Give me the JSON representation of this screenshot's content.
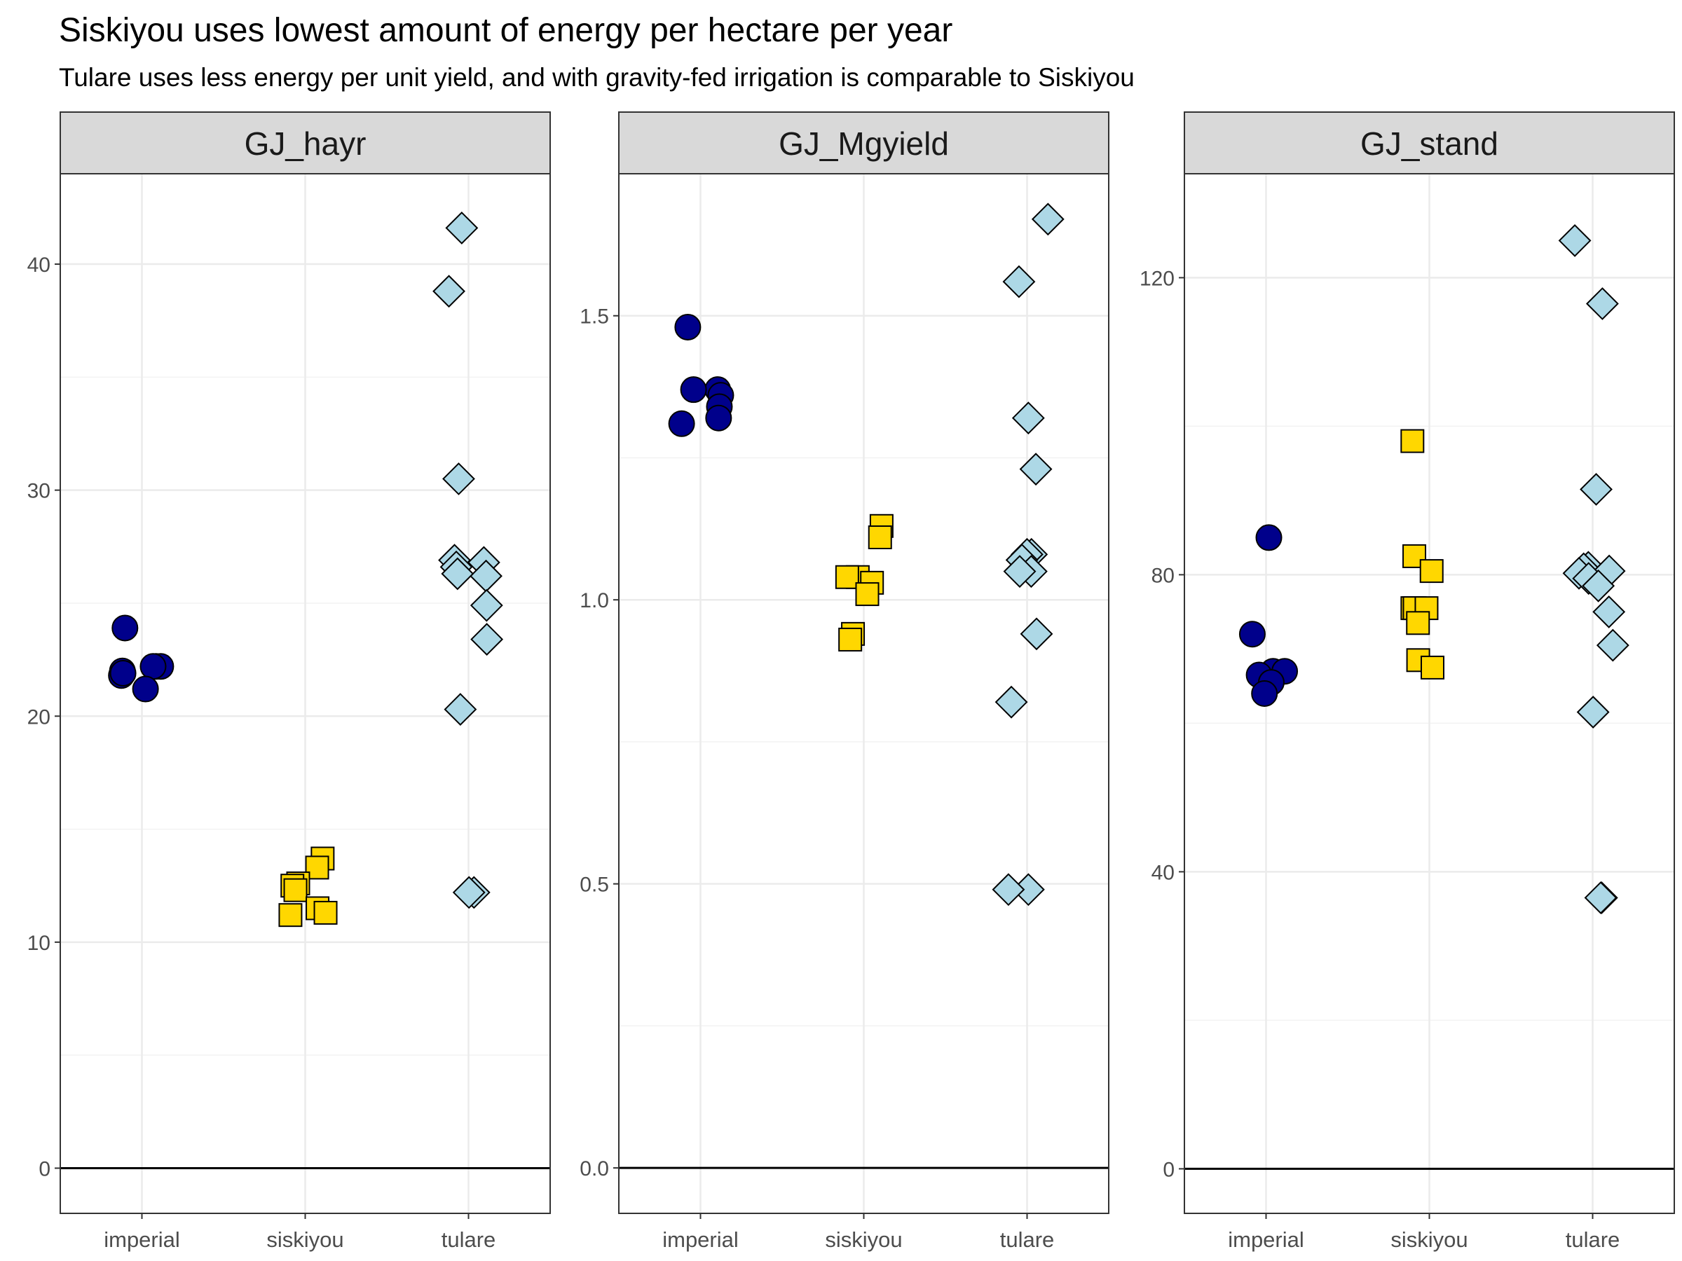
{
  "chart_data": {
    "type": "scatter",
    "title": "Siskiyou uses lowest amount of energy per hectare per year",
    "subtitle": "Tulare uses less energy per unit yield, and with gravity-fed irrigation is comparable to Siskiyou",
    "xlabel": "",
    "ylabel": "",
    "categories": [
      "imperial",
      "siskiyou",
      "tulare"
    ],
    "grid": true,
    "legend": "none",
    "colors": {
      "imperial": "#00008B",
      "siskiyou": "#FFD700",
      "tulare": "#ADD8E6"
    },
    "shapes": {
      "imperial": "circle",
      "siskiyou": "square",
      "tulare": "diamond"
    },
    "panels": [
      {
        "name": "GJ_hayr",
        "ylim": [
          -2,
          44
        ],
        "yticks": [
          0,
          10,
          20,
          30,
          40
        ],
        "tick_labels": [
          "0",
          "10",
          "20",
          "30",
          "40"
        ],
        "series": [
          {
            "name": "imperial",
            "values": [
              23.9,
              22.2,
              22.2,
              22.0,
              21.8,
              21.9,
              22.2,
              21.2
            ]
          },
          {
            "name": "siskiyou",
            "values": [
              13.7,
              13.3,
              12.6,
              12.5,
              12.3,
              11.5,
              11.3,
              11.2
            ]
          },
          {
            "name": "tulare",
            "values": [
              41.6,
              38.8,
              30.5,
              26.9,
              26.8,
              26.6,
              26.2,
              26.3,
              24.9,
              23.4,
              20.3,
              12.2,
              12.2
            ]
          }
        ]
      },
      {
        "name": "GJ_Mgyield",
        "ylim": [
          -0.08,
          1.75
        ],
        "yticks": [
          0,
          0.5,
          1.0,
          1.5
        ],
        "tick_labels": [
          "0.0",
          "0.5",
          "1.0",
          "1.5"
        ],
        "series": [
          {
            "name": "imperial",
            "values": [
              1.48,
              1.37,
              1.37,
              1.36,
              1.34,
              1.32,
              1.31
            ]
          },
          {
            "name": "siskiyou",
            "values": [
              1.13,
              1.11,
              1.04,
              1.04,
              1.03,
              1.01,
              0.94,
              0.93
            ]
          },
          {
            "name": "tulare",
            "values": [
              1.67,
              1.56,
              1.32,
              1.23,
              1.08,
              1.08,
              1.07,
              1.05,
              1.05,
              0.94,
              0.82,
              0.49,
              0.49
            ]
          }
        ]
      },
      {
        "name": "GJ_stand",
        "ylim": [
          -6,
          134
        ],
        "yticks": [
          0,
          40,
          80,
          120
        ],
        "tick_labels": [
          "0",
          "40",
          "80",
          "120"
        ],
        "series": [
          {
            "name": "imperial",
            "values": [
              85.0,
              72.0,
              67.0,
              67.0,
              66.5,
              65.5,
              64.0
            ]
          },
          {
            "name": "siskiyou",
            "values": [
              98.0,
              82.5,
              80.5,
              75.5,
              75.5,
              75.5,
              73.5,
              68.5,
              67.5
            ]
          },
          {
            "name": "tulare",
            "values": [
              125.0,
              116.5,
              91.5,
              81.0,
              80.8,
              80.5,
              80.2,
              79.5,
              78.5,
              75.0,
              70.5,
              61.5,
              36.5,
              36.5
            ]
          }
        ]
      }
    ]
  }
}
